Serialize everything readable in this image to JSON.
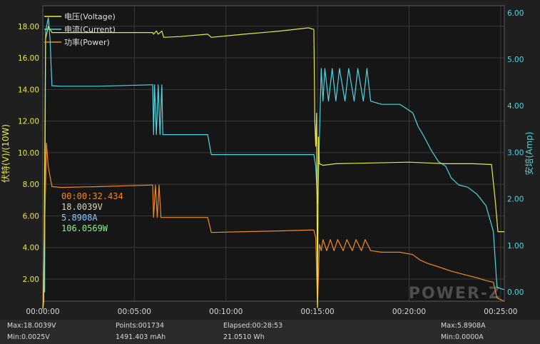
{
  "chart_data": {
    "type": "line",
    "xlabel": "",
    "x_ticks": [
      "00:00:00",
      "00:05:00",
      "00:10:00",
      "00:15:00",
      "00:20:00",
      "00:25:00"
    ],
    "x_range": [
      0,
      25.2
    ],
    "y_left": {
      "label": "伏特(V)/(10W)",
      "ticks": [
        "2.00",
        "4.00",
        "6.00",
        "8.00",
        "10.00",
        "12.00",
        "14.00",
        "16.00",
        "18.00"
      ],
      "range": [
        0.6,
        19.3
      ]
    },
    "y_right": {
      "label": "安培(Amp)",
      "ticks": [
        "0.00",
        "1.00",
        "2.00",
        "3.00",
        "4.00",
        "5.00",
        "6.00"
      ],
      "range": [
        -0.2,
        6.15
      ]
    },
    "grid": true,
    "legend_position": "top-left",
    "legend": [
      {
        "label": "电压(Voltage)",
        "color": "#e8e84a"
      },
      {
        "label": "电流(Current)",
        "color": "#4fd6e2"
      },
      {
        "label": "功率(Power)",
        "color": "#f08a24"
      }
    ],
    "series": [
      {
        "name": "电压(Voltage)",
        "axis": "left",
        "color": "#e8e84a",
        "points": [
          [
            0.0,
            0.1
          ],
          [
            0.05,
            0.6
          ],
          [
            0.15,
            17.2
          ],
          [
            0.3,
            18.0
          ],
          [
            0.5,
            17.6
          ],
          [
            1.0,
            17.6
          ],
          [
            3.0,
            17.6
          ],
          [
            5.0,
            17.6
          ],
          [
            6.0,
            17.6
          ],
          [
            6.05,
            17.5
          ],
          [
            6.2,
            17.7
          ],
          [
            6.3,
            17.5
          ],
          [
            6.5,
            17.7
          ],
          [
            6.6,
            17.3
          ],
          [
            7.5,
            17.35
          ],
          [
            9.0,
            17.5
          ],
          [
            9.2,
            17.3
          ],
          [
            11.0,
            17.5
          ],
          [
            13.0,
            17.7
          ],
          [
            14.5,
            17.9
          ],
          [
            14.8,
            17.8
          ],
          [
            14.85,
            12.0
          ],
          [
            14.9,
            10.4
          ],
          [
            14.95,
            12.5
          ],
          [
            15.0,
            0.2
          ],
          [
            15.05,
            11.0
          ],
          [
            15.1,
            9.3
          ],
          [
            15.3,
            9.2
          ],
          [
            16.0,
            9.3
          ],
          [
            18.0,
            9.35
          ],
          [
            20.0,
            9.4
          ],
          [
            21.0,
            9.35
          ],
          [
            22.0,
            9.3
          ],
          [
            23.5,
            9.3
          ],
          [
            24.5,
            9.25
          ],
          [
            24.7,
            7.0
          ],
          [
            24.85,
            5.0
          ],
          [
            25.2,
            5.0
          ]
        ]
      },
      {
        "name": "电流(Current)",
        "axis": "right",
        "color": "#4fd6e2",
        "points": [
          [
            0.0,
            0.0
          ],
          [
            0.1,
            0.0
          ],
          [
            0.15,
            5.6
          ],
          [
            0.3,
            5.89
          ],
          [
            0.4,
            5.4
          ],
          [
            0.5,
            4.43
          ],
          [
            1.0,
            4.42
          ],
          [
            3.0,
            4.42
          ],
          [
            5.9,
            4.45
          ],
          [
            6.0,
            4.45
          ],
          [
            6.05,
            3.38
          ],
          [
            6.1,
            4.45
          ],
          [
            6.2,
            3.38
          ],
          [
            6.3,
            4.45
          ],
          [
            6.4,
            3.38
          ],
          [
            6.5,
            4.45
          ],
          [
            6.55,
            3.38
          ],
          [
            9.0,
            3.38
          ],
          [
            9.2,
            2.95
          ],
          [
            11.0,
            2.95
          ],
          [
            13.0,
            2.95
          ],
          [
            14.6,
            2.95
          ],
          [
            14.8,
            2.95
          ],
          [
            14.9,
            2.7
          ],
          [
            15.0,
            1.9
          ],
          [
            15.05,
            2.5
          ],
          [
            15.2,
            4.8
          ],
          [
            15.3,
            4.1
          ],
          [
            15.4,
            4.8
          ],
          [
            15.6,
            4.1
          ],
          [
            15.8,
            4.8
          ],
          [
            16.0,
            4.1
          ],
          [
            16.2,
            4.8
          ],
          [
            16.5,
            4.1
          ],
          [
            16.7,
            4.8
          ],
          [
            17.0,
            4.1
          ],
          [
            17.2,
            4.8
          ],
          [
            17.5,
            4.1
          ],
          [
            17.7,
            4.8
          ],
          [
            17.9,
            4.1
          ],
          [
            18.5,
            4.03
          ],
          [
            19.5,
            4.03
          ],
          [
            20.2,
            3.85
          ],
          [
            20.5,
            3.55
          ],
          [
            20.8,
            3.35
          ],
          [
            21.2,
            3.05
          ],
          [
            21.6,
            2.8
          ],
          [
            22.0,
            2.7
          ],
          [
            22.3,
            2.45
          ],
          [
            22.7,
            2.3
          ],
          [
            23.2,
            2.25
          ],
          [
            23.7,
            2.1
          ],
          [
            24.2,
            1.85
          ],
          [
            24.6,
            1.3
          ],
          [
            24.8,
            0.1
          ],
          [
            25.0,
            0.07
          ],
          [
            25.2,
            0.05
          ]
        ]
      },
      {
        "name": "功率(Power)",
        "axis": "left",
        "color": "#f08a24",
        "points": [
          [
            0.0,
            0.1
          ],
          [
            0.15,
            8.0
          ],
          [
            0.2,
            10.6
          ],
          [
            0.3,
            9.1
          ],
          [
            0.5,
            7.85
          ],
          [
            1.0,
            7.8
          ],
          [
            3.0,
            7.85
          ],
          [
            5.9,
            7.95
          ],
          [
            6.0,
            7.95
          ],
          [
            6.05,
            5.9
          ],
          [
            6.15,
            7.95
          ],
          [
            6.25,
            5.9
          ],
          [
            6.35,
            7.95
          ],
          [
            6.45,
            5.9
          ],
          [
            6.55,
            5.9
          ],
          [
            9.0,
            5.9
          ],
          [
            9.2,
            4.95
          ],
          [
            11.0,
            5.0
          ],
          [
            13.0,
            5.05
          ],
          [
            14.5,
            5.1
          ],
          [
            14.8,
            5.1
          ],
          [
            14.9,
            4.6
          ],
          [
            15.0,
            0.2
          ],
          [
            15.1,
            4.2
          ],
          [
            15.2,
            3.8
          ],
          [
            15.3,
            4.5
          ],
          [
            15.5,
            3.8
          ],
          [
            15.7,
            4.5
          ],
          [
            15.9,
            3.8
          ],
          [
            16.1,
            4.5
          ],
          [
            16.4,
            3.8
          ],
          [
            16.6,
            4.5
          ],
          [
            16.9,
            3.8
          ],
          [
            17.1,
            4.5
          ],
          [
            17.4,
            3.8
          ],
          [
            17.6,
            4.5
          ],
          [
            17.9,
            3.8
          ],
          [
            18.5,
            3.7
          ],
          [
            19.5,
            3.7
          ],
          [
            20.2,
            3.55
          ],
          [
            20.6,
            3.2
          ],
          [
            21.0,
            3.0
          ],
          [
            21.4,
            2.85
          ],
          [
            21.8,
            2.7
          ],
          [
            22.3,
            2.5
          ],
          [
            22.8,
            2.35
          ],
          [
            23.3,
            2.2
          ],
          [
            23.8,
            2.05
          ],
          [
            24.2,
            1.9
          ],
          [
            24.6,
            1.8
          ],
          [
            24.8,
            0.8
          ],
          [
            25.2,
            0.6
          ]
        ]
      }
    ],
    "cursor_readout": {
      "time": "00:00:32.434",
      "voltage": "18.0039V",
      "current": "5.8908A",
      "power": "106.0569W"
    },
    "watermark": "POWER-Z"
  },
  "footer": {
    "max_v": "Max:18.0039V",
    "min_v": "Min:0.0025V",
    "points": "Points:001734",
    "capacity": "1491.403 mAh",
    "elapsed": "Elapsed:00:28:53",
    "energy": "21.0510 Wh",
    "max_a": "Max:5.8908A",
    "min_a": "Min:0.0000A"
  },
  "colors": {
    "background": "#1f1f1f",
    "plot_background": "#161616",
    "grid": "#3a3a3a",
    "left_axis": "#e8e84a",
    "right_axis": "#4fd6e2",
    "readout_time": "#f08a24",
    "readout_voltage": "#d8d8b0",
    "readout_current": "#8cc8ff",
    "readout_power": "#8ef08e"
  }
}
